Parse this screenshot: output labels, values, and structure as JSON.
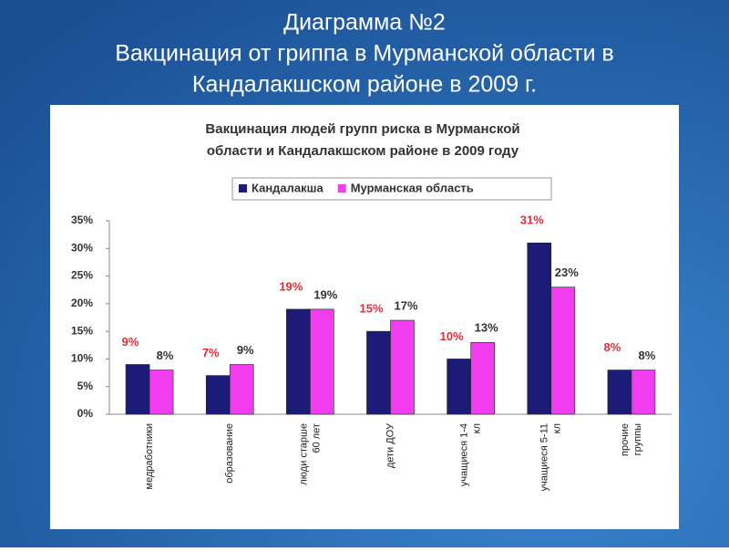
{
  "slide": {
    "title_lines": [
      "Диаграмма №2",
      "Вакцинация от гриппа в Мурманской области  в",
      "Кандалакшском районе в 2009 г."
    ]
  },
  "chart_data": {
    "type": "bar",
    "title_lines": [
      "Вакцинация людей групп риска в Мурманской",
      "области и Кандалакшском районе в 2009 году"
    ],
    "categories": [
      [
        "медработники"
      ],
      [
        "образование"
      ],
      [
        "люди старше",
        "60 лет"
      ],
      [
        "дети ДОУ"
      ],
      [
        "учащиеся 1-4",
        "кл"
      ],
      [
        "учащиеся 5-11",
        "кл"
      ],
      [
        "прочие",
        "группы"
      ]
    ],
    "series": [
      {
        "name": "Кандалакша",
        "color": "#1c1c78",
        "label_color": "#e0303a",
        "values": [
          9,
          7,
          19,
          15,
          10,
          31,
          8
        ],
        "value_labels": [
          "9%",
          "7%",
          "19%",
          "15%",
          "10%",
          "31%",
          "8%"
        ]
      },
      {
        "name": "Мурманская область",
        "color": "#f23cf0",
        "label_color": "#333333",
        "values": [
          8,
          9,
          19,
          17,
          13,
          23,
          8
        ],
        "value_labels": [
          "8%",
          "9%",
          "19%",
          "17%",
          "13%",
          "23%",
          "8%"
        ]
      }
    ],
    "ylim": [
      0,
      35
    ],
    "yticks": [
      {
        "value": 0,
        "label": "0%"
      },
      {
        "value": 5,
        "label": "5%"
      },
      {
        "value": 10,
        "label": "10%"
      },
      {
        "value": 15,
        "label": "15%"
      },
      {
        "value": 20,
        "label": "20%"
      },
      {
        "value": 25,
        "label": "25%"
      },
      {
        "value": 30,
        "label": "30%"
      },
      {
        "value": 35,
        "label": "35%"
      }
    ],
    "grid": false,
    "legend": "top"
  }
}
